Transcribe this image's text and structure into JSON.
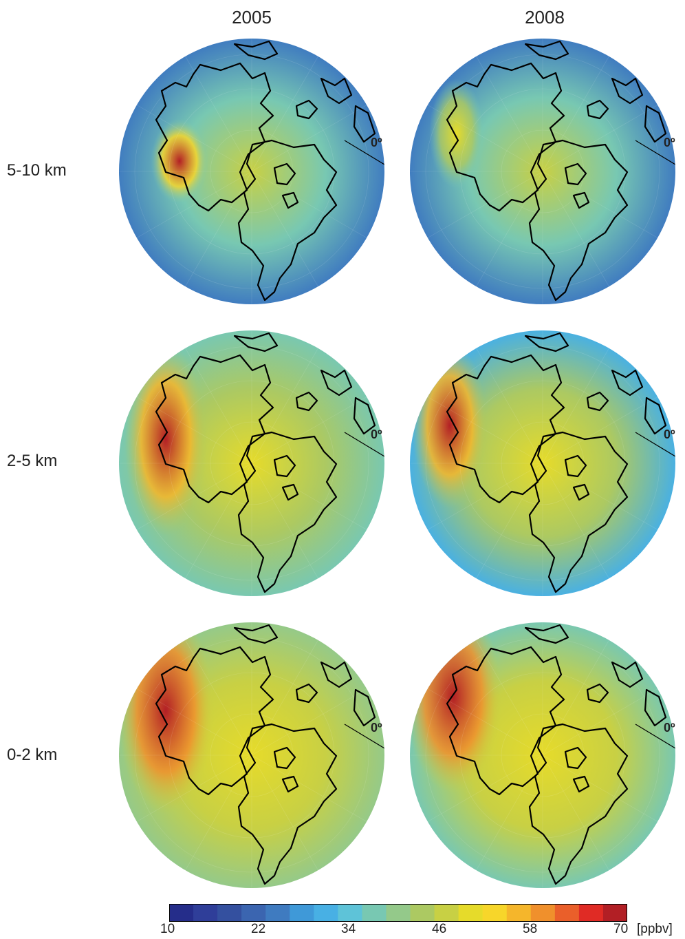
{
  "columns": [
    {
      "label": "2005"
    },
    {
      "label": "2008"
    }
  ],
  "rows": [
    {
      "label": "5-10 km"
    },
    {
      "label": "2-5 km"
    },
    {
      "label": "0-2 km"
    }
  ],
  "meridian_label": "0º",
  "colorbar": {
    "min": 10,
    "max": 70,
    "step": 4,
    "tick_labels": [
      "10",
      "22",
      "34",
      "46",
      "58",
      "70"
    ],
    "unit": "[ppbv]",
    "colors": [
      "#252d8a",
      "#2f3e99",
      "#34509f",
      "#3b65b0",
      "#3f7bc0",
      "#3f99d8",
      "#48b0e4",
      "#5ec3d8",
      "#78c8b2",
      "#94c98a",
      "#acc962",
      "#c8d044",
      "#e6db2a",
      "#f7d62a",
      "#f5b62b",
      "#f0902c",
      "#ea5f2a",
      "#e02b25",
      "#b21f25"
    ]
  },
  "panels": [
    {
      "row": "5-10 km",
      "col": "2005",
      "levels": {
        "outer": 0.25,
        "mid": 0.45,
        "center": 0.6,
        "plume": 0.95
      }
    },
    {
      "row": "5-10 km",
      "col": "2008",
      "levels": {
        "outer": 0.22,
        "mid": 0.45,
        "center": 0.58,
        "plume": 0.68
      }
    },
    {
      "row": "2-5 km",
      "col": "2005",
      "levels": {
        "outer": 0.45,
        "mid": 0.55,
        "center": 0.66,
        "plume": 1.0
      }
    },
    {
      "row": "2-5 km",
      "col": "2008",
      "levels": {
        "outer": 0.35,
        "mid": 0.55,
        "center": 0.65,
        "plume": 1.0
      }
    },
    {
      "row": "0-2 km",
      "col": "2005",
      "levels": {
        "outer": 0.5,
        "mid": 0.58,
        "center": 0.68,
        "plume": 1.0
      }
    },
    {
      "row": "0-2 km",
      "col": "2008",
      "levels": {
        "outer": 0.45,
        "mid": 0.58,
        "center": 0.68,
        "plume": 1.0
      }
    }
  ]
}
